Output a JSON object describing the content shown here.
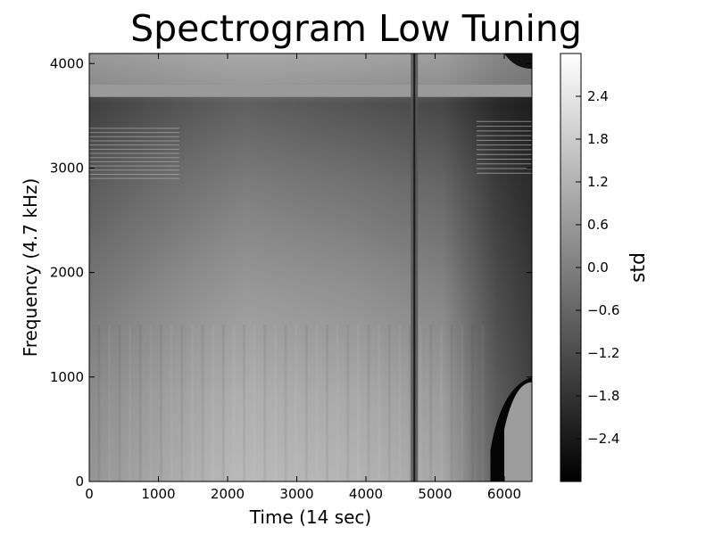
{
  "chart_data": {
    "type": "heatmap",
    "title": "Spectrogram Low Tuning",
    "xlabel": "Time (14 sec)",
    "ylabel": "Frequency (4.7 kHz)",
    "xlim": [
      0,
      6400
    ],
    "ylim": [
      0,
      4096
    ],
    "x_ticks": [
      0,
      1000,
      2000,
      3000,
      4000,
      5000,
      6000
    ],
    "y_ticks": [
      0,
      1000,
      2000,
      3000,
      4000
    ],
    "colormap": "gray",
    "colorbar": {
      "label": "std",
      "range": [
        -3.0,
        3.0
      ],
      "ticks": [
        -2.4,
        -1.8,
        -1.2,
        -0.6,
        0.0,
        0.6,
        1.2,
        1.8,
        2.4
      ],
      "tick_labels": [
        "−2.4",
        "−1.8",
        "−1.2",
        "−0.6",
        "0.0",
        "0.6",
        "1.2",
        "1.8",
        "2.4"
      ]
    },
    "features": {
      "masked_band_frequency": [
        3680,
        3800
      ],
      "dark_vertical_line_time": 4700,
      "saturated_dark_region_start_time": 5800,
      "stripe_band_low_frequency": [
        2900,
        3400
      ]
    }
  }
}
